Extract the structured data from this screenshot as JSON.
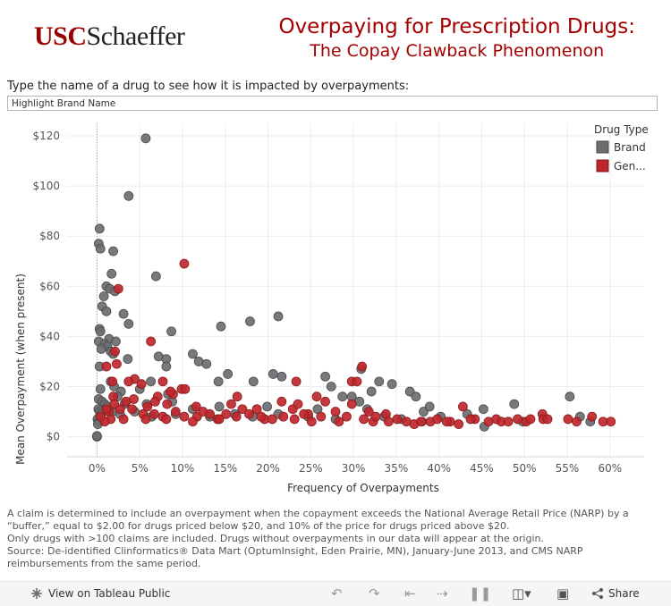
{
  "header": {
    "logo_usc": "USC",
    "logo_schaeffer": "Schaeffer",
    "title_line1": "Overpaying for Prescription Drugs:",
    "title_line2": "The Copay Clawback Phenomenon"
  },
  "search": {
    "prompt": "Type the name of a drug to see how it is impacted by overpayments:",
    "placeholder": "Highlight Brand Name"
  },
  "colors": {
    "brand": "#6d6e71",
    "generic": "#c0272d",
    "brand_edge": "#4a4a4a",
    "generic_edge": "#8a1b1f"
  },
  "chart_data": {
    "type": "scatter",
    "xlabel": "Frequency of Overpayments",
    "ylabel": "Mean Overpayment (when present)",
    "xlim": [
      -0.035,
      0.64
    ],
    "ylim": [
      -8,
      125
    ],
    "x_ticks": [
      0,
      0.05,
      0.1,
      0.15,
      0.2,
      0.25,
      0.3,
      0.35,
      0.4,
      0.45,
      0.5,
      0.55,
      0.6
    ],
    "x_tick_labels": [
      "0%",
      "5%",
      "10%",
      "15%",
      "20%",
      "25%",
      "30%",
      "35%",
      "40%",
      "45%",
      "50%",
      "55%",
      "60%"
    ],
    "y_ticks": [
      0,
      20,
      40,
      60,
      80,
      100,
      120
    ],
    "y_tick_labels": [
      "$0",
      "$20",
      "$40",
      "$60",
      "$80",
      "$100",
      "$120"
    ],
    "legend_title": "Drug Type",
    "series": [
      {
        "name": "Brand",
        "points": [
          [
            0.057,
            119
          ],
          [
            0.037,
            96
          ],
          [
            0.003,
            83
          ],
          [
            0.002,
            77
          ],
          [
            0.004,
            75
          ],
          [
            0.019,
            74
          ],
          [
            0.017,
            65
          ],
          [
            0.069,
            64
          ],
          [
            0.011,
            60
          ],
          [
            0.015,
            59
          ],
          [
            0.021,
            58
          ],
          [
            0.008,
            56
          ],
          [
            0.006,
            52
          ],
          [
            0.011,
            50
          ],
          [
            0.031,
            49
          ],
          [
            0.212,
            48
          ],
          [
            0.179,
            46
          ],
          [
            0.037,
            45
          ],
          [
            0.003,
            43
          ],
          [
            0.145,
            44
          ],
          [
            0.004,
            42
          ],
          [
            0.087,
            42
          ],
          [
            0.014,
            39
          ],
          [
            0.002,
            38
          ],
          [
            0.022,
            38
          ],
          [
            0.009,
            37
          ],
          [
            0.012,
            36
          ],
          [
            0.005,
            35
          ],
          [
            0.016,
            34
          ],
          [
            0.019,
            33
          ],
          [
            0.112,
            33
          ],
          [
            0.072,
            32
          ],
          [
            0.081,
            31
          ],
          [
            0.036,
            31
          ],
          [
            0.119,
            30
          ],
          [
            0.128,
            29
          ],
          [
            0.081,
            28
          ],
          [
            0.003,
            28
          ],
          [
            0.153,
            25
          ],
          [
            0.206,
            25
          ],
          [
            0.216,
            24
          ],
          [
            0.267,
            24
          ],
          [
            0.309,
            27
          ],
          [
            0.063,
            22
          ],
          [
            0.016,
            22
          ],
          [
            0.142,
            22
          ],
          [
            0.183,
            22
          ],
          [
            0.274,
            20
          ],
          [
            0.33,
            22
          ],
          [
            0.366,
            18
          ],
          [
            0.373,
            16
          ],
          [
            0.298,
            16
          ],
          [
            0.321,
            18
          ],
          [
            0.345,
            21
          ],
          [
            0.02,
            20
          ],
          [
            0.004,
            19
          ],
          [
            0.028,
            18
          ],
          [
            0.024,
            16
          ],
          [
            0.05,
            19
          ],
          [
            0.083,
            17
          ],
          [
            0.002,
            15
          ],
          [
            0.006,
            14
          ],
          [
            0.009,
            13
          ],
          [
            0.012,
            12
          ],
          [
            0.032,
            13
          ],
          [
            0.058,
            13
          ],
          [
            0.088,
            14
          ],
          [
            0.143,
            12
          ],
          [
            0.199,
            12
          ],
          [
            0.258,
            11
          ],
          [
            0.287,
            16
          ],
          [
            0.307,
            14
          ],
          [
            0.316,
            11
          ],
          [
            0.382,
            10
          ],
          [
            0.389,
            12
          ],
          [
            0.0015,
            11
          ],
          [
            0.003,
            10
          ],
          [
            0.005,
            9
          ],
          [
            0.018,
            10
          ],
          [
            0.027,
            9
          ],
          [
            0.044,
            10
          ],
          [
            0.064,
            8
          ],
          [
            0.092,
            9
          ],
          [
            0.112,
            11
          ],
          [
            0.132,
            8
          ],
          [
            0.161,
            9
          ],
          [
            0.182,
            8
          ],
          [
            0.212,
            9
          ],
          [
            0.247,
            8
          ],
          [
            0.279,
            7
          ],
          [
            0.336,
            8
          ],
          [
            0.356,
            7
          ],
          [
            0.402,
            8
          ],
          [
            0.433,
            9
          ],
          [
            0.452,
            11
          ],
          [
            0.488,
            13
          ],
          [
            0.553,
            16
          ],
          [
            0.565,
            8
          ],
          [
            0.577,
            6
          ],
          [
            0.498,
            6
          ],
          [
            0.453,
            4
          ],
          [
            0.38,
            6
          ],
          [
            0.0005,
            7
          ],
          [
            0.002,
            6
          ],
          [
            0.001,
            5
          ],
          [
            0.0,
            0
          ],
          [
            0.0,
            0.3
          ]
        ]
      },
      {
        "name": "Generic",
        "points": [
          [
            0.102,
            69
          ],
          [
            0.025,
            59
          ],
          [
            0.063,
            38
          ],
          [
            0.021,
            34
          ],
          [
            0.023,
            29
          ],
          [
            0.011,
            28
          ],
          [
            0.044,
            23
          ],
          [
            0.037,
            22
          ],
          [
            0.018,
            22
          ],
          [
            0.052,
            21
          ],
          [
            0.077,
            22
          ],
          [
            0.099,
            19
          ],
          [
            0.103,
            19
          ],
          [
            0.089,
            17
          ],
          [
            0.019,
            16
          ],
          [
            0.071,
            16
          ],
          [
            0.086,
            18
          ],
          [
            0.233,
            22
          ],
          [
            0.298,
            22
          ],
          [
            0.304,
            22
          ],
          [
            0.31,
            28
          ],
          [
            0.164,
            16
          ],
          [
            0.257,
            16
          ],
          [
            0.267,
            14
          ],
          [
            0.298,
            13
          ],
          [
            0.216,
            14
          ],
          [
            0.279,
            10
          ],
          [
            0.247,
            9
          ],
          [
            0.229,
            11
          ],
          [
            0.235,
            13
          ],
          [
            0.187,
            11
          ],
          [
            0.17,
            11
          ],
          [
            0.027,
            11
          ],
          [
            0.014,
            10
          ],
          [
            0.041,
            11
          ],
          [
            0.054,
            9
          ],
          [
            0.067,
            9
          ],
          [
            0.077,
            8
          ],
          [
            0.092,
            10
          ],
          [
            0.102,
            8
          ],
          [
            0.117,
            8
          ],
          [
            0.124,
            10
          ],
          [
            0.132,
            9
          ],
          [
            0.141,
            7
          ],
          [
            0.151,
            9
          ],
          [
            0.163,
            8
          ],
          [
            0.178,
            9
          ],
          [
            0.196,
            7
          ],
          [
            0.205,
            7
          ],
          [
            0.218,
            8
          ],
          [
            0.231,
            7
          ],
          [
            0.251,
            6
          ],
          [
            0.262,
            8
          ],
          [
            0.283,
            6
          ],
          [
            0.292,
            8
          ],
          [
            0.312,
            7
          ],
          [
            0.323,
            6
          ],
          [
            0.338,
            9
          ],
          [
            0.341,
            6
          ],
          [
            0.351,
            7
          ],
          [
            0.362,
            6
          ],
          [
            0.371,
            5
          ],
          [
            0.39,
            6
          ],
          [
            0.398,
            7
          ],
          [
            0.413,
            6
          ],
          [
            0.423,
            5
          ],
          [
            0.428,
            12
          ],
          [
            0.442,
            7
          ],
          [
            0.458,
            6
          ],
          [
            0.467,
            7
          ],
          [
            0.473,
            6
          ],
          [
            0.481,
            6
          ],
          [
            0.492,
            7
          ],
          [
            0.502,
            6
          ],
          [
            0.521,
            9
          ],
          [
            0.551,
            7
          ],
          [
            0.561,
            6
          ],
          [
            0.592,
            6
          ],
          [
            0.601,
            6
          ],
          [
            0.522,
            7
          ],
          [
            0.507,
            7
          ],
          [
            0.437,
            7
          ],
          [
            0.379,
            6
          ],
          [
            0.326,
            8
          ],
          [
            0.192,
            8
          ],
          [
            0.143,
            7
          ],
          [
            0.112,
            6
          ],
          [
            0.081,
            7
          ],
          [
            0.057,
            7
          ],
          [
            0.031,
            7
          ],
          [
            0.016,
            7
          ],
          [
            0.009,
            6
          ],
          [
            0.004,
            8
          ],
          [
            0.011,
            11
          ],
          [
            0.02,
            13
          ],
          [
            0.034,
            14
          ],
          [
            0.043,
            15
          ],
          [
            0.059,
            12
          ],
          [
            0.068,
            14
          ],
          [
            0.082,
            13
          ],
          [
            0.116,
            12
          ],
          [
            0.157,
            13
          ],
          [
            0.242,
            9
          ],
          [
            0.318,
            10
          ],
          [
            0.409,
            6
          ],
          [
            0.527,
            7
          ],
          [
            0.579,
            8
          ]
        ]
      }
    ]
  },
  "footnote": {
    "line1": "A claim is determined to include an overpayment when the copayment exceeds the National Average Retail Price (NARP) by a “buffer,” equal to $2.00 for drugs priced below $20, and 10% of the price for drugs priced above $20.",
    "line2": "Only drugs with >100 claims are included. Drugs without overpayments in our data will appear at the origin.",
    "line3": "Source: De-identified Clinformatics® Data Mart (OptumInsight, Eden Prairie, MN), January-June 2013, and CMS NARP reimbursements from the same period."
  },
  "toolbar": {
    "view_label": "View on Tableau Public",
    "share_label": "Share"
  }
}
